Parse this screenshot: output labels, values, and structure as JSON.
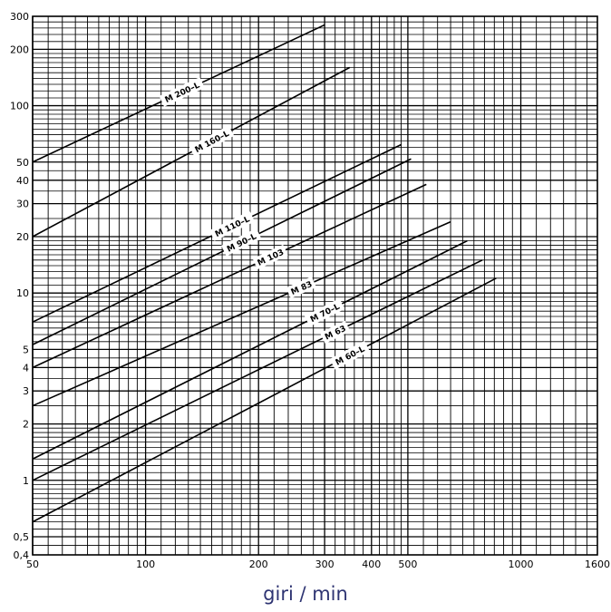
{
  "chart_data": {
    "type": "line",
    "title": "",
    "xlabel": "giri / min",
    "ylabel": "",
    "x_scale": "log",
    "y_scale": "log",
    "xlim": [
      50,
      1600
    ],
    "ylim": [
      0.4,
      300
    ],
    "grid": true,
    "x_ticks": [
      {
        "value": 50,
        "label": "50"
      },
      {
        "value": 100,
        "label": "100"
      },
      {
        "value": 200,
        "label": "200"
      },
      {
        "value": 300,
        "label": "300"
      },
      {
        "value": 400,
        "label": "400"
      },
      {
        "value": 500,
        "label": "500"
      },
      {
        "value": 1000,
        "label": "1000"
      },
      {
        "value": 1600,
        "label": "1600"
      }
    ],
    "y_ticks": [
      {
        "value": 0.4,
        "label": "0,4"
      },
      {
        "value": 0.5,
        "label": "0,5"
      },
      {
        "value": 1,
        "label": "1"
      },
      {
        "value": 2,
        "label": "2"
      },
      {
        "value": 3,
        "label": "3"
      },
      {
        "value": 4,
        "label": "4"
      },
      {
        "value": 5,
        "label": "5"
      },
      {
        "value": 10,
        "label": "10"
      },
      {
        "value": 20,
        "label": "20"
      },
      {
        "value": 30,
        "label": "30"
      },
      {
        "value": 40,
        "label": "40"
      },
      {
        "value": 50,
        "label": "50"
      },
      {
        "value": 100,
        "label": "100"
      },
      {
        "value": 200,
        "label": "200"
      },
      {
        "value": 300,
        "label": "300"
      }
    ],
    "series": [
      {
        "name": "M 200–L",
        "x": [
          50,
          300
        ],
        "y": [
          50,
          270
        ],
        "label_at_x": 125
      },
      {
        "name": "M 160–L",
        "x": [
          50,
          350
        ],
        "y": [
          20,
          160
        ],
        "label_at_x": 150
      },
      {
        "name": "M 110–L",
        "x": [
          50,
          480
        ],
        "y": [
          7,
          62
        ],
        "label_at_x": 170
      },
      {
        "name": "M 90–L",
        "x": [
          50,
          510
        ],
        "y": [
          5.3,
          52
        ],
        "label_at_x": 180
      },
      {
        "name": "M 103",
        "x": [
          50,
          560
        ],
        "y": [
          4,
          38
        ],
        "label_at_x": 215
      },
      {
        "name": "M 83",
        "x": [
          50,
          650
        ],
        "y": [
          2.5,
          24
        ],
        "label_at_x": 260
      },
      {
        "name": "M 70–L",
        "x": [
          50,
          720
        ],
        "y": [
          1.3,
          19
        ],
        "label_at_x": 300
      },
      {
        "name": "M 63",
        "x": [
          50,
          790
        ],
        "y": [
          1,
          15
        ],
        "label_at_x": 320
      },
      {
        "name": "M 60–L",
        "x": [
          50,
          860
        ],
        "y": [
          0.6,
          12
        ],
        "label_at_x": 350
      }
    ]
  }
}
